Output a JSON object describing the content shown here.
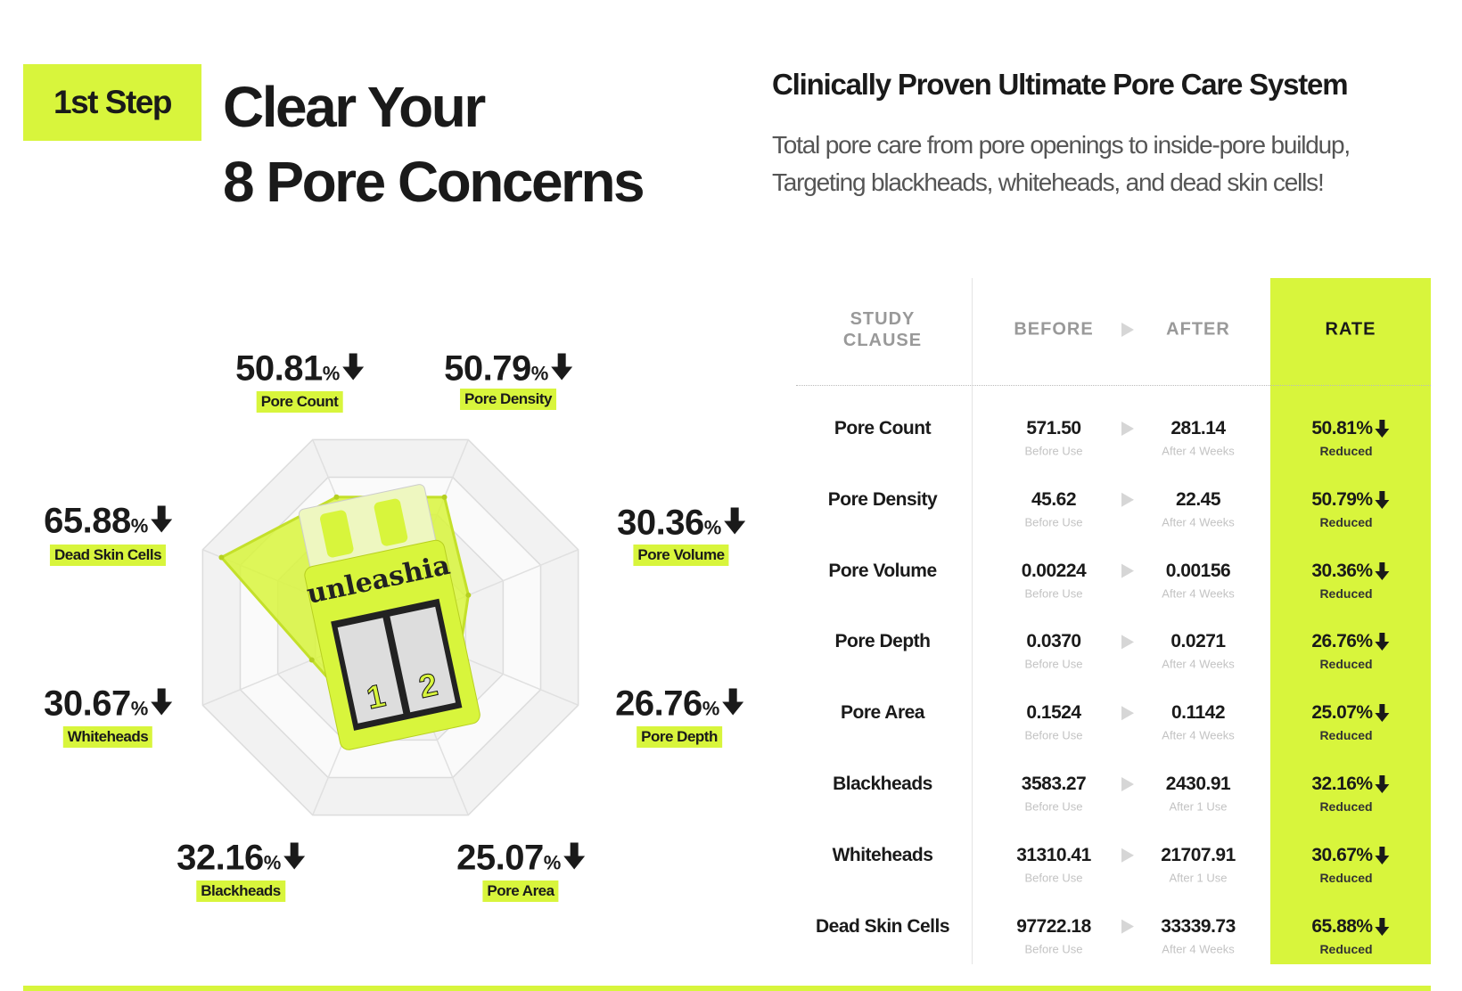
{
  "header": {
    "step": "1st Step",
    "title_lines": [
      "Clear Your",
      "8 Pore Concerns"
    ],
    "subtitle": "Clinically Proven Ultimate Pore Care System",
    "description_lines": [
      "Total pore care from pore openings to inside-pore buildup,",
      "Targeting blackheads, whiteheads, and dead skin cells!"
    ]
  },
  "chart_data": {
    "type": "radar",
    "categories": [
      "Pore Count",
      "Pore Density",
      "Pore Volume",
      "Pore Depth",
      "Pore Area",
      "Blackheads",
      "Whiteheads",
      "Dead Skin Cells"
    ],
    "values": [
      50.81,
      50.79,
      30.36,
      26.76,
      25.07,
      32.16,
      30.67,
      65.88
    ],
    "unit": "%",
    "color": "#d8f53c"
  },
  "product": {
    "brand": "unleashia",
    "steps": [
      "1",
      "2"
    ]
  },
  "table": {
    "headers": [
      "STUDY CLAUSE",
      "BEFORE",
      "AFTER",
      "RATE"
    ],
    "rows": [
      {
        "clause": "Pore Count",
        "before": "571.50",
        "before_note": "Before Use",
        "after": "281.14",
        "after_note": "After 4 Weeks",
        "rate": "50.81%",
        "rate_note": "Reduced"
      },
      {
        "clause": "Pore Density",
        "before": "45.62",
        "before_note": "Before Use",
        "after": "22.45",
        "after_note": "After 4 Weeks",
        "rate": "50.79%",
        "rate_note": "Reduced"
      },
      {
        "clause": "Pore Volume",
        "before": "0.00224",
        "before_note": "Before Use",
        "after": "0.00156",
        "after_note": "After 4 Weeks",
        "rate": "30.36%",
        "rate_note": "Reduced"
      },
      {
        "clause": "Pore Depth",
        "before": "0.0370",
        "before_note": "Before Use",
        "after": "0.0271",
        "after_note": "After 4 Weeks",
        "rate": "26.76%",
        "rate_note": "Reduced"
      },
      {
        "clause": "Pore Area",
        "before": "0.1524",
        "before_note": "Before Use",
        "after": "0.1142",
        "after_note": "After 4 Weeks",
        "rate": "25.07%",
        "rate_note": "Reduced"
      },
      {
        "clause": "Blackheads",
        "before": "3583.27",
        "before_note": "Before Use",
        "after": "2430.91",
        "after_note": "After 1 Use",
        "rate": "32.16%",
        "rate_note": "Reduced"
      },
      {
        "clause": "Whiteheads",
        "before": "31310.41",
        "before_note": "Before Use",
        "after": "21707.91",
        "after_note": "After 1 Use",
        "rate": "30.67%",
        "rate_note": "Reduced"
      },
      {
        "clause": "Dead Skin Cells",
        "before": "97722.18",
        "before_note": "Before Use",
        "after": "33339.73",
        "after_note": "After 4 Weeks",
        "rate": "65.88%",
        "rate_note": "Reduced"
      }
    ]
  }
}
